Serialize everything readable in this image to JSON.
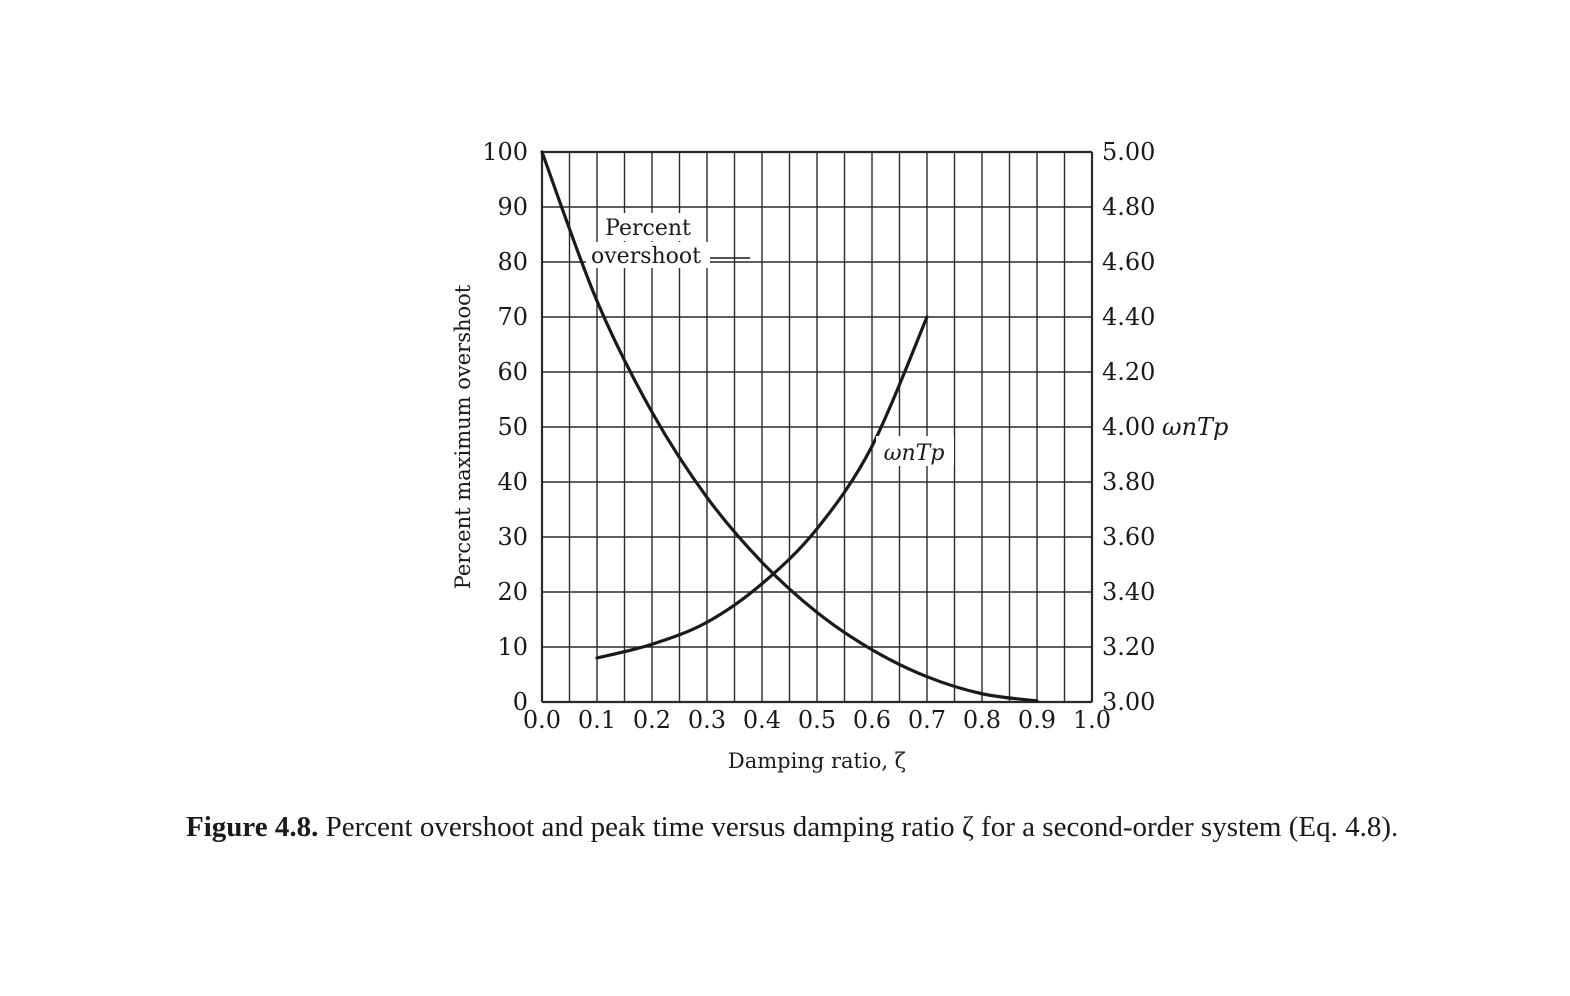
{
  "chart_data": {
    "type": "line",
    "x": [
      0.0,
      0.1,
      0.2,
      0.3,
      0.4,
      0.5,
      0.6,
      0.7,
      0.8,
      0.9,
      1.0
    ],
    "xlim": [
      0.0,
      1.0
    ],
    "ylim_left": [
      0,
      100
    ],
    "ylim_right": [
      3.0,
      5.0
    ],
    "xlabel": "Damping ratio, ζ",
    "ylabel_left": "Percent maximum overshoot",
    "ylabel_right": "ωnTp",
    "x_ticks": [
      "0.0",
      "0.1",
      "0.2",
      "0.3",
      "0.4",
      "0.5",
      "0.6",
      "0.7",
      "0.8",
      "0.9",
      "1.0"
    ],
    "y_left_ticks": [
      "0",
      "10",
      "20",
      "30",
      "40",
      "50",
      "60",
      "70",
      "80",
      "90",
      "100"
    ],
    "y_right_ticks": [
      "3.00",
      "3.20",
      "3.40",
      "3.60",
      "3.80",
      "4.00",
      "4.20",
      "4.40",
      "4.60",
      "4.80",
      "5.00"
    ],
    "grid": true,
    "series": [
      {
        "name": "Percent overshoot",
        "axis": "left",
        "x": [
          0.0,
          0.1,
          0.2,
          0.3,
          0.4,
          0.5,
          0.6,
          0.7,
          0.8,
          0.9
        ],
        "values": [
          100.0,
          72.9,
          52.7,
          37.2,
          25.4,
          16.3,
          9.5,
          4.6,
          1.5,
          0.2
        ]
      },
      {
        "name": "ωnTp",
        "axis": "right",
        "x": [
          0.1,
          0.2,
          0.3,
          0.4,
          0.5,
          0.6,
          0.7
        ],
        "values": [
          3.16,
          3.21,
          3.29,
          3.43,
          3.63,
          3.93,
          4.4
        ]
      }
    ],
    "annotations": [
      {
        "id": "overshoot-label-line1",
        "text": "Percent"
      },
      {
        "id": "overshoot-label-line2",
        "text": "overshoot"
      },
      {
        "id": "omega-label",
        "text": "ωnTp"
      }
    ]
  },
  "caption": {
    "label": "Figure 4.8.",
    "text": "Percent overshoot and peak time versus damping ratio ζ for a second-order system (Eq. 4.8)."
  },
  "colors": {
    "ink": "#1a1a1a",
    "grid": "#2a2a2a",
    "background": "#ffffff"
  }
}
